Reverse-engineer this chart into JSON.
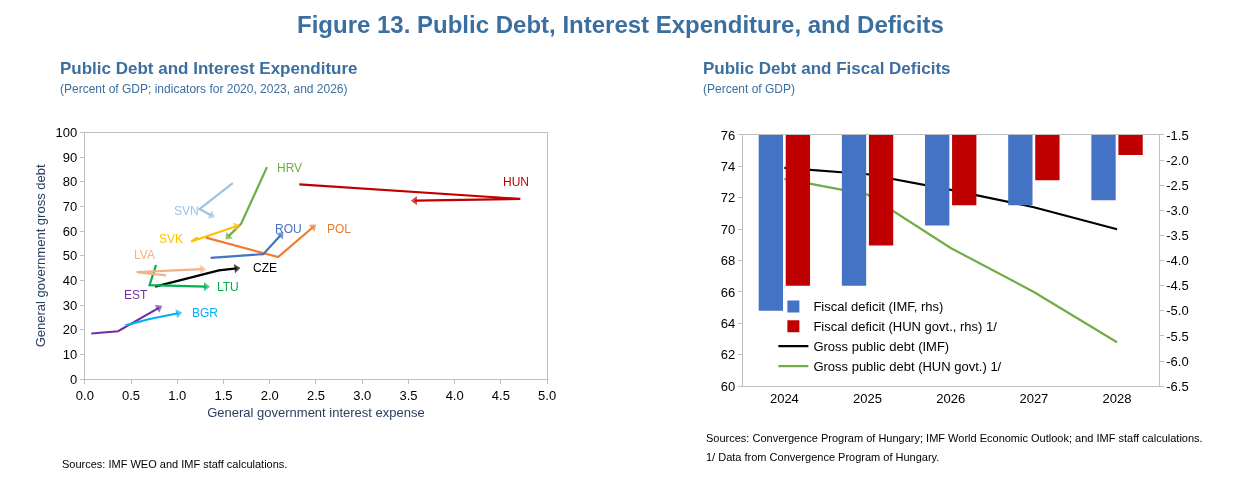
{
  "chart_data": [
    {
      "type": "line",
      "title": "Public Debt and Interest Expenditure",
      "subtitle": "(Percent of GDP; indicators for 2020, 2023, and 2026)",
      "xlabel": "General government interest expense",
      "ylabel": "General government gross debt",
      "annotations": [
        "Figure 13. Public Debt, Interest Expenditure, and Deficits",
        "Sources: IMF WEO and IMF staff calculations."
      ],
      "xlim": [
        0,
        5
      ],
      "xticks": [
        {
          "value": 0,
          "label": "0.0"
        },
        {
          "value": 0.5,
          "label": "0.5"
        },
        {
          "value": 1,
          "label": "1.0"
        },
        {
          "value": 1.5,
          "label": "1.5"
        },
        {
          "value": 2,
          "label": "2.0"
        },
        {
          "value": 2.5,
          "label": "2.5"
        },
        {
          "value": 3,
          "label": "3.0"
        },
        {
          "value": 3.5,
          "label": "3.5"
        },
        {
          "value": 4,
          "label": "4.0"
        },
        {
          "value": 4.5,
          "label": "4.5"
        },
        {
          "value": 5,
          "label": "5.0"
        }
      ],
      "ylim": [
        0,
        100
      ],
      "yticks": [
        0,
        10,
        20,
        30,
        40,
        50,
        60,
        70,
        80,
        90,
        100
      ],
      "grid": false,
      "series": [
        {
          "name": "HUN",
          "color": "#c00000",
          "x": [
            2.32,
            4.71,
            3.57
          ],
          "values": [
            79.0,
            73.1,
            72.4
          ]
        },
        {
          "name": "HRV",
          "color": "#70ad47",
          "x": [
            1.97,
            1.69,
            1.55
          ],
          "values": [
            86.0,
            63.0,
            57.8
          ]
        },
        {
          "name": "SVN",
          "color": "#9dc3e6",
          "x": [
            1.6,
            1.24,
            1.37
          ],
          "values": [
            79.5,
            69.0,
            66.4
          ]
        },
        {
          "name": "SVK",
          "color": "#ffc000",
          "x": [
            1.22,
            1.15,
            1.64
          ],
          "values": [
            57.5,
            55.8,
            62.0
          ]
        },
        {
          "name": "POL",
          "color": "#ed7d31",
          "x": [
            1.31,
            2.09,
            2.47
          ],
          "values": [
            57.4,
            49.5,
            61.7
          ]
        },
        {
          "name": "ROU",
          "color": "#4472c4",
          "x": [
            1.36,
            1.93,
            2.12
          ],
          "values": [
            49.2,
            50.7,
            58.5
          ]
        },
        {
          "name": "CZE",
          "color": "#000000",
          "x": [
            0.76,
            1.45,
            1.64
          ],
          "values": [
            37.5,
            44.1,
            44.9
          ]
        },
        {
          "name": "LTU",
          "color": "#00b050",
          "x": [
            0.77,
            0.7,
            1.31
          ],
          "values": [
            46.3,
            38.1,
            37.5
          ]
        },
        {
          "name": "LVA",
          "color": "#f4b183",
          "x": [
            0.88,
            0.56,
            1.27
          ],
          "values": [
            42.1,
            43.4,
            44.6
          ]
        },
        {
          "name": "EST",
          "color": "#7030a0",
          "x": [
            0.07,
            0.36,
            0.8
          ],
          "values": [
            18.5,
            19.4,
            28.9
          ]
        },
        {
          "name": "BGR",
          "color": "#00b0f0",
          "x": [
            0.44,
            0.7,
            1.01
          ],
          "values": [
            21.8,
            24.4,
            26.7
          ]
        }
      ]
    },
    {
      "type": "bar",
      "title": "Public Debt and Fiscal Deficits",
      "subtitle": "(Percent of GDP)",
      "annotations": [
        "Sources: Convergence Program of Hungary; IMF World Economic Outlook; and IMF staff calculations.",
        "1/ Data from Convergence Program of Hungary."
      ],
      "categories": [
        "2024",
        "2025",
        "2026",
        "2027",
        "2028"
      ],
      "ylim": [
        60,
        76
      ],
      "yticks": [
        60,
        62,
        64,
        66,
        68,
        70,
        72,
        74,
        76
      ],
      "y2lim": [
        -6.5,
        -1.5
      ],
      "y2ticks": [
        -1.5,
        {
          "value": -2,
          "label": "-2.0"
        },
        -2.5,
        {
          "value": -3,
          "label": "-3.0"
        },
        -3.5,
        {
          "value": -4,
          "label": "-4.0"
        },
        -4.5,
        {
          "value": -5,
          "label": "-5.0"
        },
        -5.5,
        {
          "value": -6,
          "label": "-6.0"
        },
        -6.5
      ],
      "grid": false,
      "legend": "bottom left",
      "series": [
        {
          "name": "Fiscal deficit (IMF, rhs)",
          "color": "#4472c4",
          "axis": "y2",
          "values": [
            -5.0,
            -4.5,
            -3.3,
            -2.9,
            -2.8
          ]
        },
        {
          "name": "Fiscal deficit (HUN govt., rhs) 1/",
          "color": "#c00000",
          "axis": "y2",
          "values": [
            -4.5,
            -3.7,
            -2.9,
            -2.4,
            -1.9
          ]
        },
        {
          "name": "Gross public debt (IMF)",
          "color": "#000000",
          "type": "line",
          "values": [
            73.9,
            73.5,
            72.5,
            71.4,
            70.0
          ]
        },
        {
          "name": "Gross public debt (HUN govt.) 1/",
          "color": "#70ad47",
          "type": "line",
          "values": [
            73.2,
            72.2,
            68.8,
            66.0,
            62.8
          ]
        }
      ]
    }
  ]
}
